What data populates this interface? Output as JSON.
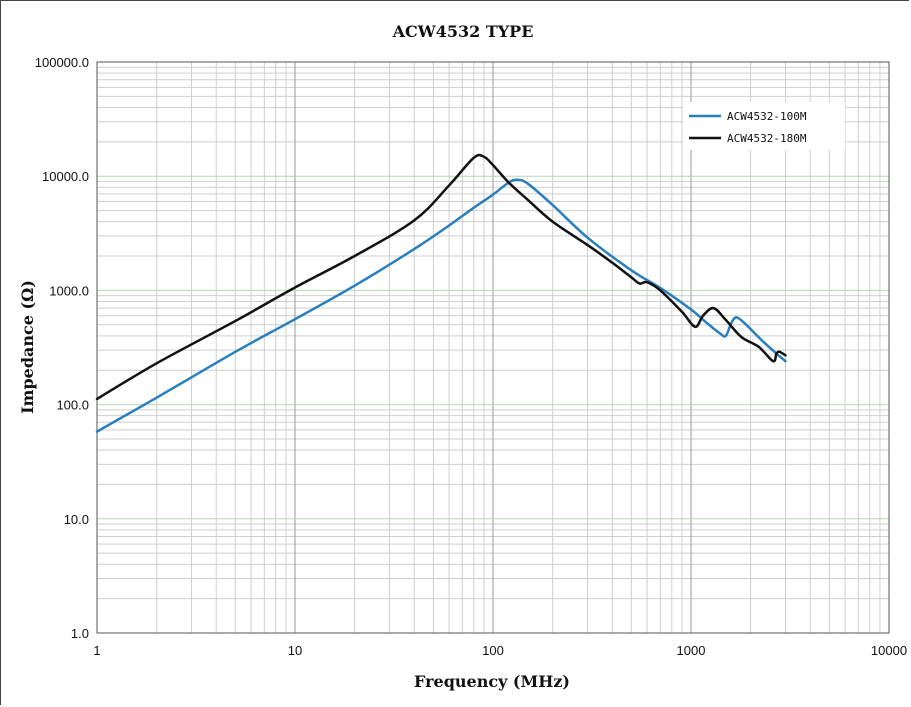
{
  "chart_data": {
    "type": "line",
    "title": "ACW4532 TYPE",
    "xlabel": "Frequency (MHz)",
    "ylabel": "Impedance (Ω)",
    "xscale": "log",
    "yscale": "log",
    "xlim": [
      1,
      10000
    ],
    "ylim": [
      1,
      100000
    ],
    "xtick_labels": [
      "1",
      "10",
      "100",
      "1000",
      "10000"
    ],
    "xtick_values": [
      1,
      10,
      100,
      1000,
      10000
    ],
    "ytick_labels": [
      "1.0",
      "10.0",
      "100.0",
      "1000.0",
      "10000.0",
      "100000.0"
    ],
    "ytick_values": [
      1,
      10,
      100,
      1000,
      10000,
      100000
    ],
    "grid": true,
    "legend_position": "top-right",
    "series": [
      {
        "name": "ACW4532-100M",
        "color": "#2a7fbd",
        "points": [
          [
            1,
            58
          ],
          [
            2,
            115
          ],
          [
            5,
            290
          ],
          [
            10,
            560
          ],
          [
            20,
            1100
          ],
          [
            40,
            2300
          ],
          [
            60,
            3700
          ],
          [
            80,
            5300
          ],
          [
            100,
            6900
          ],
          [
            120,
            8800
          ],
          [
            133,
            9300
          ],
          [
            150,
            8600
          ],
          [
            200,
            5600
          ],
          [
            300,
            2900
          ],
          [
            500,
            1500
          ],
          [
            700,
            1050
          ],
          [
            1000,
            680
          ],
          [
            1200,
            520
          ],
          [
            1400,
            420
          ],
          [
            1500,
            400
          ],
          [
            1600,
            520
          ],
          [
            1700,
            580
          ],
          [
            1900,
            500
          ],
          [
            2300,
            360
          ],
          [
            2700,
            280
          ],
          [
            3000,
            240
          ]
        ]
      },
      {
        "name": "ACW4532-180M",
        "color": "#111111",
        "points": [
          [
            1,
            112
          ],
          [
            2,
            230
          ],
          [
            5,
            540
          ],
          [
            10,
            1060
          ],
          [
            20,
            2000
          ],
          [
            40,
            4100
          ],
          [
            60,
            8300
          ],
          [
            80,
            14500
          ],
          [
            90,
            14800
          ],
          [
            100,
            12500
          ],
          [
            120,
            8800
          ],
          [
            150,
            6200
          ],
          [
            200,
            4000
          ],
          [
            300,
            2500
          ],
          [
            400,
            1750
          ],
          [
            500,
            1300
          ],
          [
            550,
            1150
          ],
          [
            600,
            1180
          ],
          [
            700,
            1000
          ],
          [
            900,
            650
          ],
          [
            1050,
            480
          ],
          [
            1150,
            600
          ],
          [
            1300,
            700
          ],
          [
            1500,
            550
          ],
          [
            1800,
            390
          ],
          [
            2200,
            320
          ],
          [
            2600,
            240
          ],
          [
            2700,
            280
          ],
          [
            2800,
            290
          ],
          [
            3000,
            270
          ]
        ]
      }
    ]
  }
}
